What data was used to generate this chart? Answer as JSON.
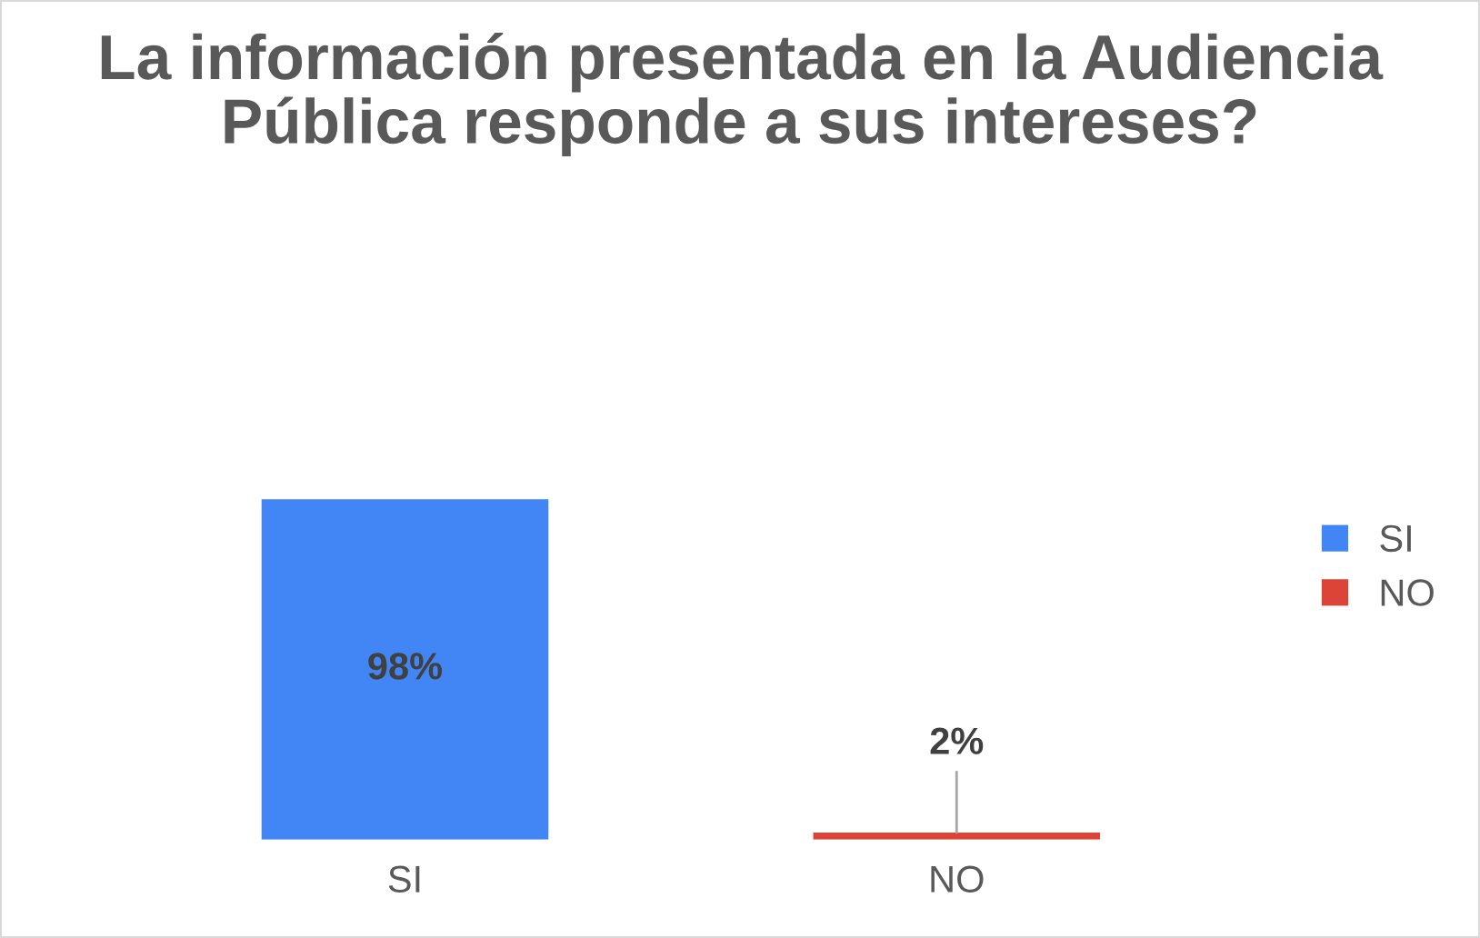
{
  "chart_data": {
    "type": "bar",
    "title": "La información presentada en la Audiencia Pública responde a sus intereses?",
    "categories": [
      "SI",
      "NO"
    ],
    "series": [
      {
        "name": "SI",
        "color": "#4285f4",
        "values": [
          98,
          null
        ],
        "value_labels": [
          "98%",
          null
        ]
      },
      {
        "name": "NO",
        "color": "#db4437",
        "values": [
          null,
          2
        ],
        "value_labels": [
          null,
          "2%"
        ]
      }
    ],
    "legend": "right",
    "grid": false
  }
}
